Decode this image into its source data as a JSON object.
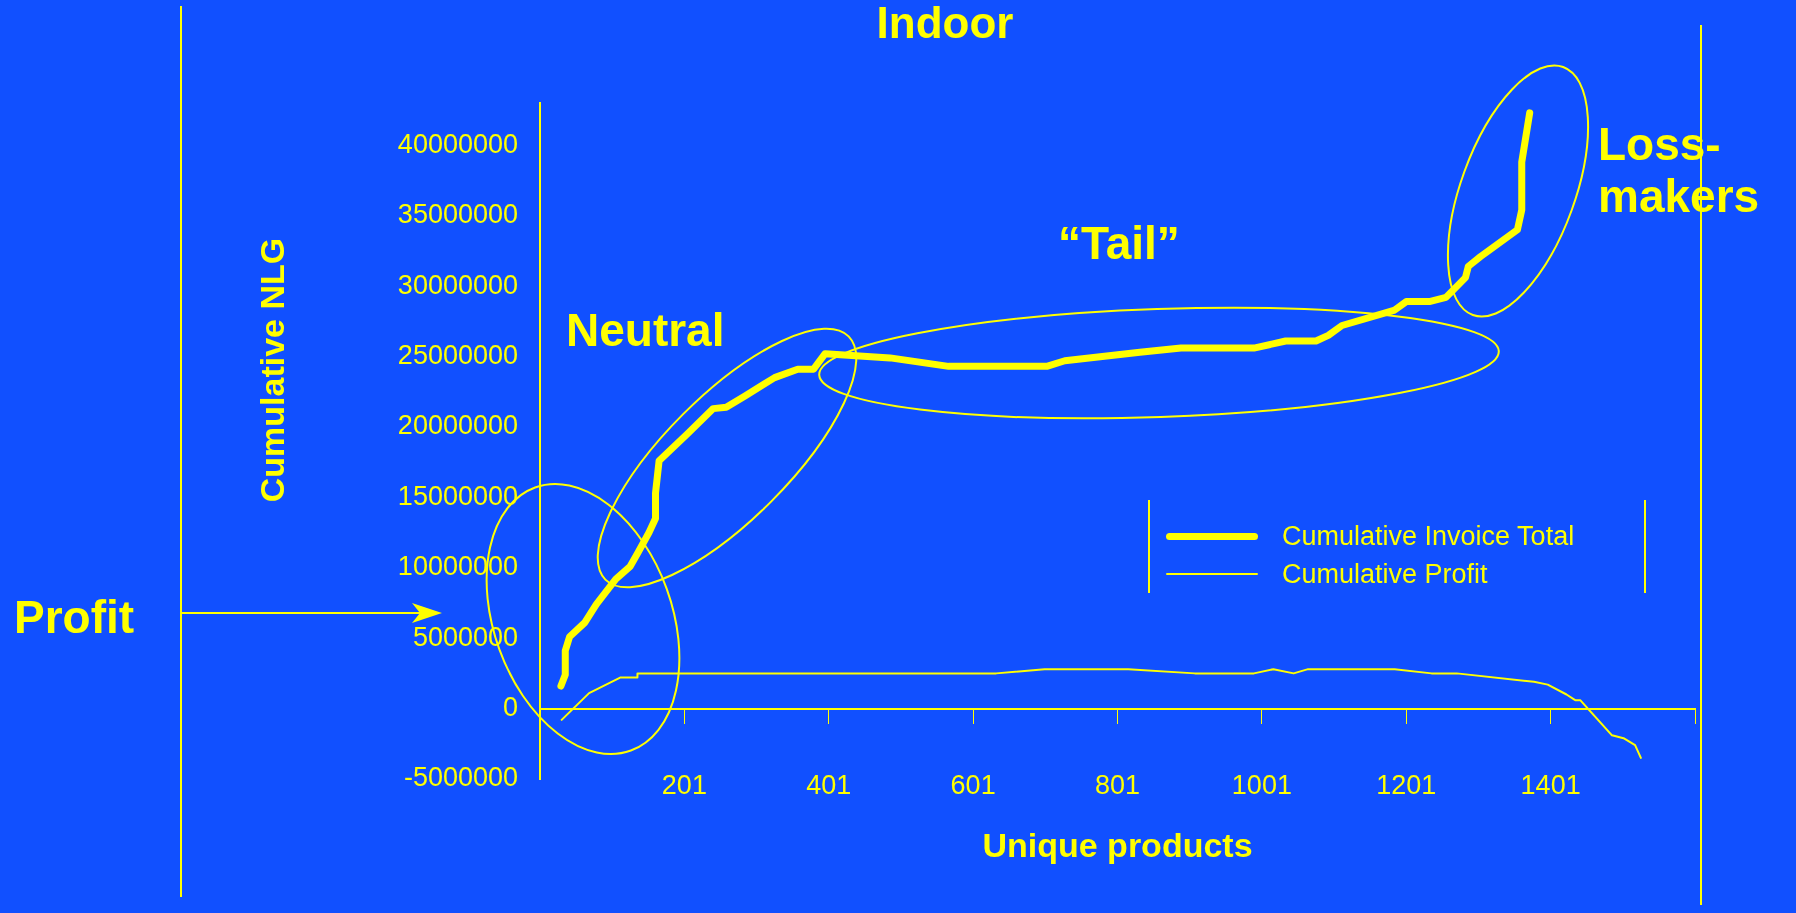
{
  "chart_data": {
    "type": "line",
    "title": "Indoor",
    "xlabel": "Unique products",
    "ylabel": "Cumulative NLG",
    "xlim": [
      1,
      1601
    ],
    "xticks": [
      201,
      401,
      601,
      801,
      1001,
      1201,
      1401,
      {
        "value": 1601,
        "label": null
      }
    ],
    "ylim": [
      -5000000,
      43000000
    ],
    "yticks": [
      -5000000,
      0,
      5000000,
      10000000,
      15000000,
      20000000,
      25000000,
      30000000,
      35000000,
      40000000
    ],
    "grid": false,
    "legend": "right",
    "series": [
      {
        "name": "Cumulative Invoice Total",
        "color": "#ffff00",
        "x": [
          30,
          36,
          36,
          42,
          63,
          79,
          91,
          106,
          126,
          137,
          152,
          161,
          161,
          166,
          205,
          241,
          259,
          285,
          326,
          358,
          380,
          396,
          486,
          567,
          703,
          728,
          832,
          889,
          990,
          1034,
          1076,
          1093,
          1112,
          1185,
          1201,
          1233,
          1256,
          1283,
          1287,
          1304,
          1355,
          1361,
          1361,
          1372
        ],
        "values": [
          1600000,
          2400000,
          4100000,
          5100000,
          6100000,
          7400000,
          8200000,
          9200000,
          10100000,
          11100000,
          12500000,
          13500000,
          15300000,
          17600000,
          19500000,
          21300000,
          21400000,
          22200000,
          23500000,
          24100000,
          24100000,
          25200000,
          24900000,
          24300000,
          24300000,
          24700000,
          25300000,
          25600000,
          25600000,
          26100000,
          26100000,
          26500000,
          27200000,
          28300000,
          28900000,
          28900000,
          29200000,
          30600000,
          31400000,
          32100000,
          34000000,
          35400000,
          38800000,
          42300000
        ]
      },
      {
        "name": "Cumulative Profit",
        "color": "#ffff00",
        "x": [
          31,
          69,
          112,
          136,
          136,
          633,
          700,
          816,
          908,
          990,
          1017,
          1045,
          1065,
          1185,
          1236,
          1271,
          1378,
          1397,
          1423,
          1435,
          1442,
          1486,
          1502,
          1518,
          1526
        ],
        "values": [
          -800000,
          1100000,
          2200000,
          2200000,
          2500000,
          2500000,
          2800000,
          2800000,
          2500000,
          2500000,
          2800000,
          2500000,
          2800000,
          2800000,
          2500000,
          2500000,
          1900000,
          1700000,
          1000000,
          600000,
          600000,
          -1900000,
          -2100000,
          -2600000,
          -3500000
        ]
      }
    ],
    "annotations": [
      "Neutral",
      "“Tail”",
      "Loss-makers",
      "Profit"
    ]
  }
}
